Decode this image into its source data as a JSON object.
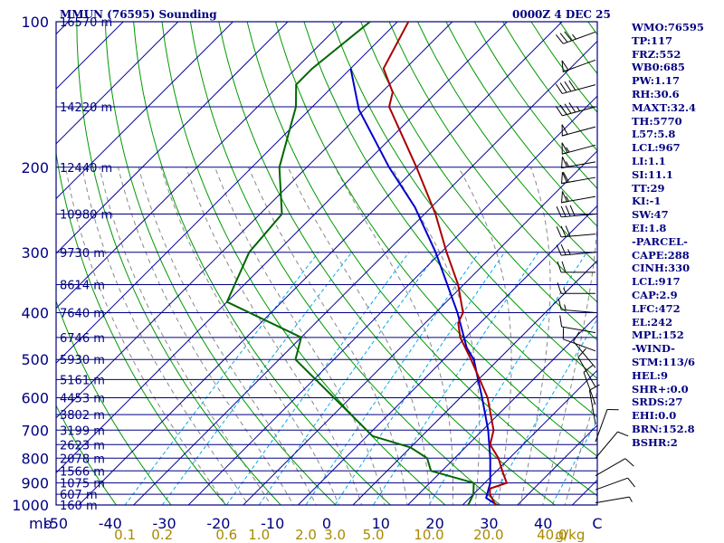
{
  "header": {
    "station": "MMUN (76595) Sounding",
    "time": "0000Z  4 DEC 25"
  },
  "indices": [
    "WMO:76595",
    "TP:117",
    "FRZ:552",
    "WB0:685",
    "PW:1.17",
    "RH:30.6",
    "MAXT:32.4",
    "TH:5770",
    "L57:5.8",
    "LCL:967",
    "LI:1.1",
    "SI:11.1",
    "TT:29",
    "KI:-1",
    "SW:47",
    "EI:1.8",
    "-PARCEL-",
    "CAPE:288",
    "CINH:330",
    "LCL:917",
    "CAP:2.9",
    "LFC:472",
    "EL:242",
    "MPL:152",
    "-WIND-",
    "STM:113/6",
    "HEL:9",
    "SHR+:0.0",
    "SRDS:27",
    "EHI:0.0",
    "BRN:152.8",
    "BSHR:2"
  ],
  "colors": {
    "isobar": "#000080",
    "isotherm": "#0000a0",
    "dry_adiabat": "#009900",
    "mixing_ratio": "#00aaee",
    "moist_adiabat": "#888888",
    "temperature": "#aa0000",
    "dewpoint": "#006600",
    "parcel": "#0000cc",
    "tick_label": "#000080",
    "mixing_label": "#aa8800"
  },
  "chart_data": {
    "type": "line",
    "title": "MMUN (76595) Sounding",
    "x_axis_unit": "mb",
    "x_ticks": [
      "-50",
      "-40",
      "-30",
      "-20",
      "-10",
      "0",
      "10",
      "20",
      "30",
      "40",
      "C"
    ],
    "x_tick_values": [
      -50,
      -40,
      -30,
      -20,
      -10,
      0,
      10,
      20,
      30,
      40,
      50
    ],
    "y_ticks": [
      "100",
      "200",
      "300",
      "400",
      "500",
      "600",
      "700",
      "800",
      "900",
      "1000"
    ],
    "y_tick_values": [
      100,
      200,
      300,
      400,
      500,
      600,
      700,
      800,
      900,
      1000
    ],
    "ylim": [
      100,
      1000
    ],
    "xlim": [
      -50,
      50
    ],
    "y_scale": "log",
    "mixing_ratio_unit": "g/kg",
    "mixing_ratio_labels": [
      "0.1",
      "0.2",
      "0.6",
      "1.0",
      "2.0",
      "3.0",
      "5.0",
      "10.0",
      "20.0",
      "40.0"
    ],
    "mixing_ratio_values": [
      0.1,
      0.2,
      0.6,
      1.0,
      2.0,
      3.0,
      5.0,
      10.0,
      20.0,
      40.0
    ],
    "height_labels": [
      {
        "p": 100,
        "label": "16570 m"
      },
      {
        "p": 150,
        "label": "14220 m"
      },
      {
        "p": 200,
        "label": "12440 m"
      },
      {
        "p": 250,
        "label": "10980 m"
      },
      {
        "p": 300,
        "label": "9730 m"
      },
      {
        "p": 350,
        "label": "8614 m"
      },
      {
        "p": 400,
        "label": "7640 m"
      },
      {
        "p": 450,
        "label": "6746 m"
      },
      {
        "p": 500,
        "label": "5930 m"
      },
      {
        "p": 550,
        "label": "5161 m"
      },
      {
        "p": 600,
        "label": "4453 m"
      },
      {
        "p": 650,
        "label": "3802 m"
      },
      {
        "p": 700,
        "label": "3199 m"
      },
      {
        "p": 750,
        "label": "2623 m"
      },
      {
        "p": 800,
        "label": "2078 m"
      },
      {
        "p": 850,
        "label": "1566 m"
      },
      {
        "p": 900,
        "label": "1075 m"
      },
      {
        "p": 950,
        "label": "607 m"
      },
      {
        "p": 1000,
        "label": "160 m"
      }
    ],
    "temperature": [
      {
        "p": 1013,
        "t": 27.5
      },
      {
        "p": 1000,
        "t": 26
      },
      {
        "p": 950,
        "t": 23
      },
      {
        "p": 925,
        "t": 22
      },
      {
        "p": 900,
        "t": 24
      },
      {
        "p": 850,
        "t": 21
      },
      {
        "p": 800,
        "t": 18
      },
      {
        "p": 750,
        "t": 14
      },
      {
        "p": 700,
        "t": 12
      },
      {
        "p": 600,
        "t": 5
      },
      {
        "p": 500,
        "t": -5
      },
      {
        "p": 450,
        "t": -11
      },
      {
        "p": 420,
        "t": -14
      },
      {
        "p": 400,
        "t": -15
      },
      {
        "p": 350,
        "t": -21
      },
      {
        "p": 300,
        "t": -29
      },
      {
        "p": 250,
        "t": -38
      },
      {
        "p": 200,
        "t": -50
      },
      {
        "p": 150,
        "t": -66
      },
      {
        "p": 140,
        "t": -68
      },
      {
        "p": 125,
        "t": -74
      },
      {
        "p": 100,
        "t": -78
      }
    ],
    "dewpoint": [
      {
        "p": 1013,
        "td": 22
      },
      {
        "p": 1000,
        "td": 21
      },
      {
        "p": 950,
        "td": 20
      },
      {
        "p": 900,
        "td": 18
      },
      {
        "p": 850,
        "td": 8
      },
      {
        "p": 800,
        "td": 5
      },
      {
        "p": 760,
        "td": 0
      },
      {
        "p": 720,
        "td": -9
      },
      {
        "p": 600,
        "td": -23
      },
      {
        "p": 500,
        "td": -37
      },
      {
        "p": 450,
        "td": -40
      },
      {
        "p": 380,
        "td": -60
      },
      {
        "p": 300,
        "td": -65
      },
      {
        "p": 250,
        "td": -66
      },
      {
        "p": 200,
        "td": -75
      },
      {
        "p": 150,
        "td": -83
      },
      {
        "p": 135,
        "td": -87
      },
      {
        "p": 125,
        "td": -87
      },
      {
        "p": 100,
        "td": -85
      }
    ],
    "parcel": [
      {
        "p": 1013,
        "t": 27.5
      },
      {
        "p": 967,
        "t": 23
      },
      {
        "p": 900,
        "t": 21
      },
      {
        "p": 800,
        "t": 16.5
      },
      {
        "p": 700,
        "t": 11
      },
      {
        "p": 600,
        "t": 4
      },
      {
        "p": 500,
        "t": -4.5
      },
      {
        "p": 472,
        "t": -8
      },
      {
        "p": 400,
        "t": -16
      },
      {
        "p": 300,
        "t": -31
      },
      {
        "p": 242,
        "t": -43
      },
      {
        "p": 200,
        "t": -55
      },
      {
        "p": 152,
        "t": -71
      },
      {
        "p": 125,
        "t": -80
      }
    ],
    "wind_barbs": [
      {
        "p": 105,
        "dir": 250,
        "spd": 35
      },
      {
        "p": 120,
        "dir": 250,
        "spd": 50
      },
      {
        "p": 135,
        "dir": 255,
        "spd": 40
      },
      {
        "p": 150,
        "dir": 255,
        "spd": 45
      },
      {
        "p": 165,
        "dir": 255,
        "spd": 50
      },
      {
        "p": 180,
        "dir": 255,
        "spd": 55
      },
      {
        "p": 195,
        "dir": 260,
        "spd": 55
      },
      {
        "p": 210,
        "dir": 260,
        "spd": 60
      },
      {
        "p": 230,
        "dir": 260,
        "spd": 55
      },
      {
        "p": 250,
        "dir": 265,
        "spd": 40
      },
      {
        "p": 275,
        "dir": 265,
        "spd": 30
      },
      {
        "p": 300,
        "dir": 265,
        "spd": 25
      },
      {
        "p": 330,
        "dir": 270,
        "spd": 20
      },
      {
        "p": 365,
        "dir": 270,
        "spd": 15
      },
      {
        "p": 400,
        "dir": 275,
        "spd": 15
      },
      {
        "p": 440,
        "dir": 280,
        "spd": 10
      },
      {
        "p": 480,
        "dir": 290,
        "spd": 10
      },
      {
        "p": 520,
        "dir": 320,
        "spd": 10
      },
      {
        "p": 570,
        "dir": 330,
        "spd": 10
      },
      {
        "p": 620,
        "dir": 340,
        "spd": 10
      },
      {
        "p": 680,
        "dir": 350,
        "spd": 10
      },
      {
        "p": 740,
        "dir": 20,
        "spd": 10
      },
      {
        "p": 800,
        "dir": 40,
        "spd": 10
      },
      {
        "p": 870,
        "dir": 60,
        "spd": 10
      },
      {
        "p": 930,
        "dir": 70,
        "spd": 10
      },
      {
        "p": 990,
        "dir": 80,
        "spd": 5
      }
    ]
  }
}
